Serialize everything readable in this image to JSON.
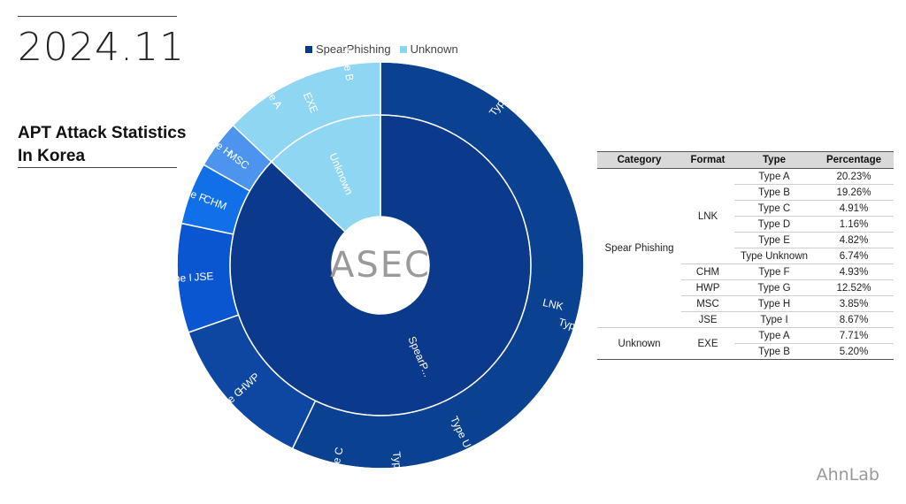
{
  "page": {
    "date": "2024.11",
    "title_line1": "APT Attack Statistics",
    "title_line2": "In Korea",
    "center_logo": "ASEC",
    "brand": "AhnLab"
  },
  "colors": {
    "spear": "#0b3a8c",
    "unknown": "#8ed6f2",
    "lnk_ring": "#0b4191"
  },
  "legend": [
    {
      "label": "SpearPhishing",
      "color": "#0b3a8c"
    },
    {
      "label": "Unknown",
      "color": "#8ed6f2"
    }
  ],
  "table": {
    "headers": [
      "Category",
      "Format",
      "Type",
      "Percentage"
    ],
    "rows": [
      {
        "category": "Spear Phishing",
        "format": "LNK",
        "type": "Type A",
        "pct": "20.23%"
      },
      {
        "category": "Spear Phishing",
        "format": "LNK",
        "type": "Type B",
        "pct": "19.26%"
      },
      {
        "category": "Spear Phishing",
        "format": "LNK",
        "type": "Type C",
        "pct": "4.91%"
      },
      {
        "category": "Spear Phishing",
        "format": "LNK",
        "type": "Type D",
        "pct": "1.16%"
      },
      {
        "category": "Spear Phishing",
        "format": "LNK",
        "type": "Type E",
        "pct": "4.82%"
      },
      {
        "category": "Spear Phishing",
        "format": "LNK",
        "type": "Type Unknown",
        "pct": "6.74%"
      },
      {
        "category": "Spear Phishing",
        "format": "CHM",
        "type": "Type F",
        "pct": "4.93%"
      },
      {
        "category": "Spear Phishing",
        "format": "HWP",
        "type": "Type G",
        "pct": "12.52%"
      },
      {
        "category": "Spear Phishing",
        "format": "MSC",
        "type": "Type H",
        "pct": "3.85%"
      },
      {
        "category": "Spear Phishing",
        "format": "JSE",
        "type": "Type I",
        "pct": "8.67%"
      },
      {
        "category": "Unknown",
        "format": "EXE",
        "type": "Type A",
        "pct": "7.71%"
      },
      {
        "category": "Unknown",
        "format": "EXE",
        "type": "Type B",
        "pct": "5.20%"
      }
    ]
  },
  "chart_data": {
    "type": "sunburst",
    "title": "APT Attack Statistics In Korea",
    "series_names": [
      "SpearPhishing",
      "Unknown"
    ],
    "levels": {
      "inner": [
        {
          "label": "SpearP...",
          "value": 87.09,
          "color": "#0b3a8c"
        },
        {
          "label": "Unknown",
          "value": 12.91,
          "color": "#8ed6f2"
        }
      ],
      "middle": [
        {
          "label": "LNK",
          "value": 57.12,
          "color": "#0b4191"
        },
        {
          "label": "HWP",
          "value": 12.52,
          "color": "#0d47a1"
        },
        {
          "label": "JSE",
          "value": 8.67,
          "color": "#0a55d0"
        },
        {
          "label": "CHM",
          "value": 4.93,
          "color": "#1170e8"
        },
        {
          "label": "MSC",
          "value": 3.85,
          "color": "#4d94ef"
        },
        {
          "label": "EXE",
          "value": 12.91,
          "color": "#8ed6f2"
        }
      ],
      "outer": [
        {
          "label": "Type A",
          "value": 20.23,
          "color": "#0b4191"
        },
        {
          "label": "Type B",
          "value": 19.26,
          "color": "#0b4191"
        },
        {
          "label": "Type Unknown",
          "value": 6.74,
          "color": "#0b4191"
        },
        {
          "label": "Type E",
          "value": 4.82,
          "color": "#0b4191"
        },
        {
          "label": "Type C",
          "value": 4.91,
          "color": "#0b4191"
        },
        {
          "label": "",
          "value": 1.16,
          "color": "#0b4191"
        },
        {
          "label": "Type G",
          "value": 12.52,
          "color": "#0d47a1"
        },
        {
          "label": "Type I",
          "value": 8.67,
          "color": "#0a55d0"
        },
        {
          "label": "Type F",
          "value": 4.93,
          "color": "#1170e8"
        },
        {
          "label": "Type H",
          "value": 3.85,
          "color": "#4d94ef"
        },
        {
          "label": "Type A",
          "value": 7.71,
          "color": "#8ed6f2"
        },
        {
          "label": "Type B",
          "value": 5.2,
          "color": "#8ed6f2"
        }
      ]
    }
  }
}
